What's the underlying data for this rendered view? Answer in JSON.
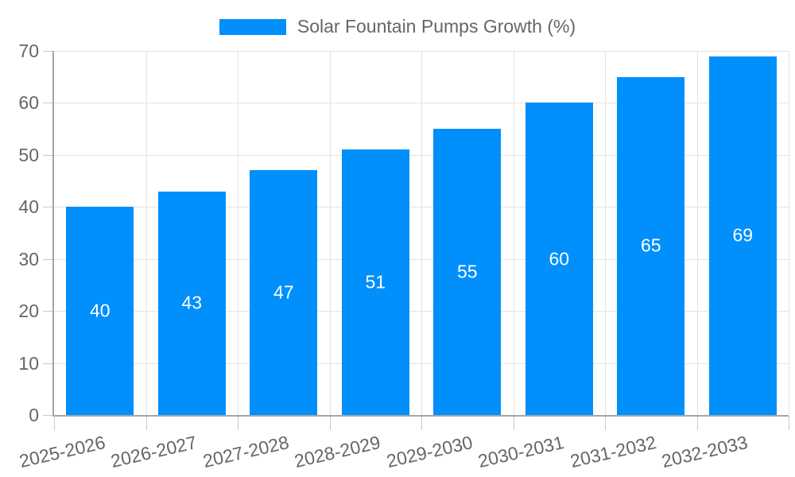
{
  "chart_data": {
    "type": "bar",
    "title": "Solar Fountain Pumps Growth (%)",
    "categories": [
      "2025-2026",
      "2026-2027",
      "2027-2028",
      "2028-2029",
      "2029-2030",
      "2030-2031",
      "2031-2032",
      "2032-2033"
    ],
    "values": [
      40,
      43,
      47,
      51,
      55,
      60,
      65,
      69
    ],
    "yticks": [
      0,
      10,
      20,
      30,
      40,
      50,
      60,
      70
    ],
    "ylim": [
      0,
      70
    ],
    "xlabel": "",
    "ylabel": "",
    "grid": true,
    "legend_position": "top",
    "colors": {
      "bar": "#008FFB",
      "value_label": "#ffffff",
      "axis_text": "#666666",
      "grid_line": "#e3e3e3",
      "tick_line": "#c9c9c9",
      "axis_line": "#a6a6a6",
      "background": "#ffffff"
    }
  }
}
